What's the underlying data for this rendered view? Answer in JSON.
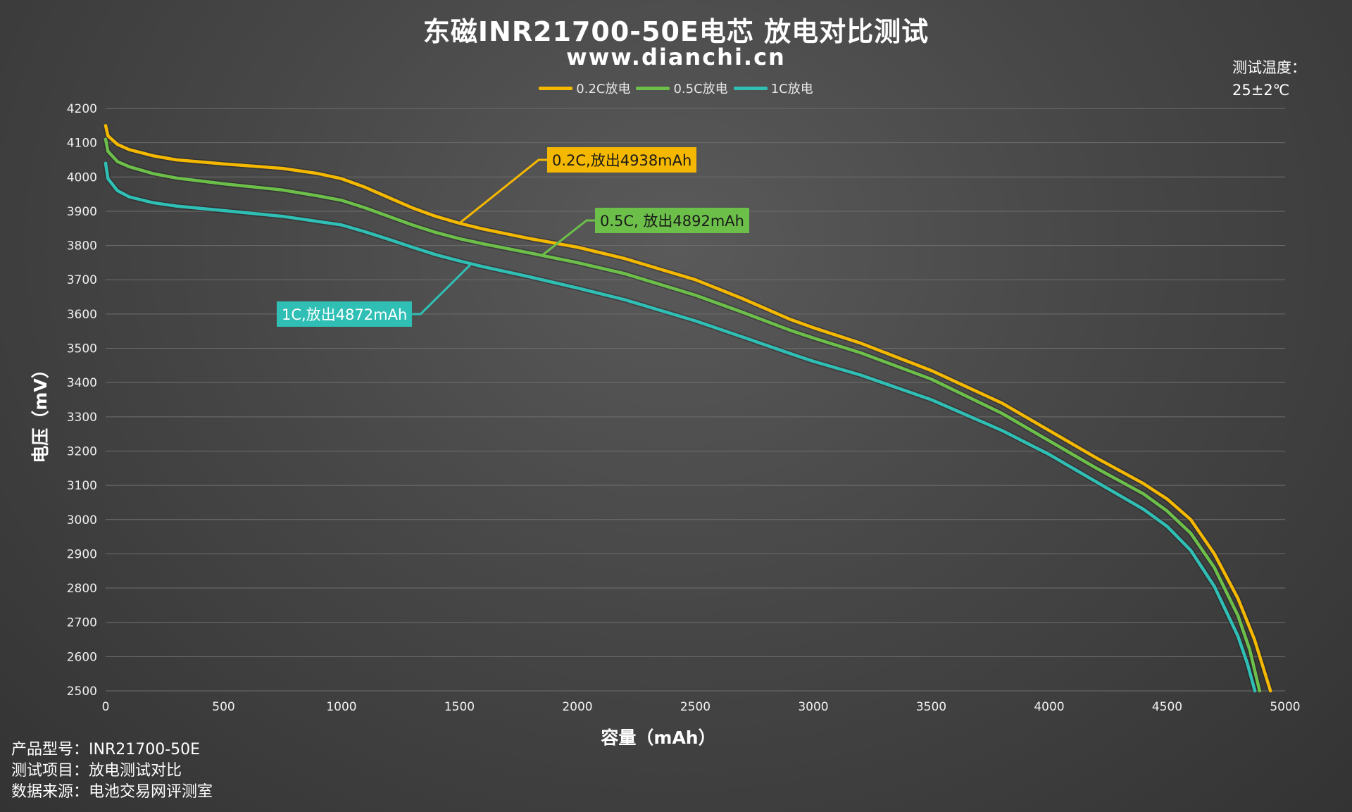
{
  "title": "东磁INR21700-50E电芯 放电对比测试",
  "subtitle": "www.dianchi.cn",
  "temperature": {
    "label": "测试温度：",
    "value": "25±2℃"
  },
  "info": {
    "model": "产品型号：INR21700-50E",
    "project": "测试项目：放电测试对比",
    "source": "数据来源：电池交易网评测室"
  },
  "chart_data": {
    "type": "line",
    "xlabel": "容量（mAh）",
    "ylabel": "电压（mV）",
    "xlim": [
      0,
      5000
    ],
    "ylim": [
      2500,
      4200
    ],
    "x_ticks": [
      0,
      500,
      1000,
      1500,
      2000,
      2500,
      3000,
      3500,
      4000,
      4500,
      5000
    ],
    "y_ticks": [
      2500,
      2600,
      2700,
      2800,
      2900,
      3000,
      3100,
      3200,
      3300,
      3400,
      3500,
      3600,
      3700,
      3800,
      3900,
      4000,
      4100,
      4200
    ],
    "grid": "horizontal",
    "legend": "top-center",
    "series": [
      {
        "name": "0.2C放电",
        "color": "#f5b800",
        "points": [
          [
            0,
            4150
          ],
          [
            10,
            4120
          ],
          [
            50,
            4095
          ],
          [
            100,
            4080
          ],
          [
            200,
            4062
          ],
          [
            300,
            4050
          ],
          [
            500,
            4038
          ],
          [
            750,
            4025
          ],
          [
            900,
            4010
          ],
          [
            1000,
            3995
          ],
          [
            1100,
            3970
          ],
          [
            1200,
            3940
          ],
          [
            1300,
            3910
          ],
          [
            1400,
            3885
          ],
          [
            1500,
            3865
          ],
          [
            1600,
            3848
          ],
          [
            1800,
            3820
          ],
          [
            2000,
            3795
          ],
          [
            2200,
            3762
          ],
          [
            2500,
            3700
          ],
          [
            2700,
            3645
          ],
          [
            2900,
            3585
          ],
          [
            3000,
            3560
          ],
          [
            3200,
            3515
          ],
          [
            3500,
            3435
          ],
          [
            3800,
            3340
          ],
          [
            4000,
            3260
          ],
          [
            4200,
            3180
          ],
          [
            4400,
            3105
          ],
          [
            4500,
            3060
          ],
          [
            4600,
            3000
          ],
          [
            4700,
            2900
          ],
          [
            4800,
            2770
          ],
          [
            4870,
            2650
          ],
          [
            4938,
            2500
          ]
        ]
      },
      {
        "name": "0.5C放电",
        "color": "#6cc04a",
        "points": [
          [
            0,
            4110
          ],
          [
            10,
            4075
          ],
          [
            50,
            4045
          ],
          [
            100,
            4030
          ],
          [
            200,
            4010
          ],
          [
            300,
            3997
          ],
          [
            500,
            3980
          ],
          [
            750,
            3962
          ],
          [
            900,
            3945
          ],
          [
            1000,
            3932
          ],
          [
            1100,
            3910
          ],
          [
            1200,
            3885
          ],
          [
            1300,
            3860
          ],
          [
            1400,
            3838
          ],
          [
            1500,
            3820
          ],
          [
            1600,
            3805
          ],
          [
            1800,
            3778
          ],
          [
            2000,
            3750
          ],
          [
            2200,
            3718
          ],
          [
            2500,
            3655
          ],
          [
            2700,
            3605
          ],
          [
            2900,
            3553
          ],
          [
            3000,
            3530
          ],
          [
            3200,
            3487
          ],
          [
            3500,
            3410
          ],
          [
            3800,
            3310
          ],
          [
            4000,
            3230
          ],
          [
            4200,
            3150
          ],
          [
            4400,
            3075
          ],
          [
            4500,
            3025
          ],
          [
            4600,
            2960
          ],
          [
            4700,
            2860
          ],
          [
            4800,
            2720
          ],
          [
            4850,
            2620
          ],
          [
            4892,
            2500
          ]
        ]
      },
      {
        "name": "1C放电",
        "color": "#2fbfb5",
        "points": [
          [
            0,
            4040
          ],
          [
            10,
            3995
          ],
          [
            50,
            3960
          ],
          [
            100,
            3942
          ],
          [
            200,
            3925
          ],
          [
            300,
            3915
          ],
          [
            500,
            3902
          ],
          [
            750,
            3885
          ],
          [
            900,
            3870
          ],
          [
            1000,
            3860
          ],
          [
            1100,
            3840
          ],
          [
            1200,
            3818
          ],
          [
            1300,
            3795
          ],
          [
            1400,
            3773
          ],
          [
            1500,
            3755
          ],
          [
            1600,
            3738
          ],
          [
            1800,
            3708
          ],
          [
            2000,
            3676
          ],
          [
            2200,
            3642
          ],
          [
            2500,
            3580
          ],
          [
            2700,
            3533
          ],
          [
            2900,
            3485
          ],
          [
            3000,
            3462
          ],
          [
            3200,
            3422
          ],
          [
            3500,
            3350
          ],
          [
            3800,
            3260
          ],
          [
            4000,
            3190
          ],
          [
            4200,
            3110
          ],
          [
            4400,
            3030
          ],
          [
            4500,
            2980
          ],
          [
            4600,
            2910
          ],
          [
            4700,
            2805
          ],
          [
            4800,
            2660
          ],
          [
            4840,
            2580
          ],
          [
            4872,
            2500
          ]
        ]
      }
    ],
    "annotations": [
      {
        "text": "0.2C,放出4938mAh",
        "series": 0,
        "at_x": 1500
      },
      {
        "text": "0.5C, 放出4892mAh",
        "series": 1,
        "at_x": 1850
      },
      {
        "text": "1C,放出4872mAh",
        "series": 2,
        "at_x": 1550
      }
    ]
  }
}
